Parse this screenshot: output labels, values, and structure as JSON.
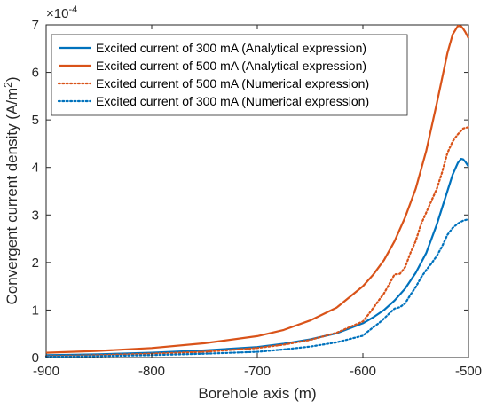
{
  "chart_data": {
    "type": "line",
    "xlabel": "Borehole axis (m)",
    "ylabel_main": "Convergent current density (A/m",
    "ylabel_sup": "2",
    "ylabel_tail": ")",
    "y_multiplier_base": "×10",
    "y_multiplier_exp": "-4",
    "xlim": [
      -900,
      -500
    ],
    "ylim": [
      0,
      7
    ],
    "y_scale_note": "values in units of 1e-4 A/m^2",
    "xticks": [
      -900,
      -800,
      -700,
      -600,
      -500
    ],
    "yticks": [
      0,
      1,
      2,
      3,
      4,
      5,
      6,
      7
    ],
    "grid": false,
    "legend_position": "top-left",
    "series": [
      {
        "name": "Excited current of 300 mA (Analytical expression)",
        "color": "#0072BD",
        "style": "solid",
        "x": [
          -900,
          -850,
          -800,
          -750,
          -700,
          -675,
          -650,
          -625,
          -600,
          -590,
          -580,
          -570,
          -560,
          -550,
          -540,
          -530,
          -520,
          -515,
          -510,
          -507,
          -505,
          -503,
          -500
        ],
        "y": [
          0.05,
          0.07,
          0.1,
          0.15,
          0.22,
          0.29,
          0.38,
          0.51,
          0.72,
          0.85,
          1.0,
          1.2,
          1.45,
          1.78,
          2.2,
          2.8,
          3.5,
          3.85,
          4.1,
          4.18,
          4.17,
          4.12,
          4.02
        ]
      },
      {
        "name": "Excited current of 500 mA (Analytical expression)",
        "color": "#D95319",
        "style": "solid",
        "x": [
          -900,
          -850,
          -800,
          -750,
          -700,
          -675,
          -650,
          -625,
          -600,
          -590,
          -580,
          -570,
          -560,
          -550,
          -540,
          -530,
          -520,
          -515,
          -510,
          -507,
          -505,
          -503,
          -500
        ],
        "y": [
          0.1,
          0.14,
          0.2,
          0.3,
          0.45,
          0.58,
          0.78,
          1.05,
          1.5,
          1.75,
          2.05,
          2.45,
          2.95,
          3.55,
          4.35,
          5.35,
          6.4,
          6.8,
          6.98,
          6.97,
          6.92,
          6.85,
          6.72
        ]
      },
      {
        "name": "Excited current of 500 mA (Numerical expression)",
        "color": "#D95319",
        "style": "dotted",
        "x": [
          -900,
          -850,
          -800,
          -750,
          -700,
          -675,
          -650,
          -625,
          -600,
          -595,
          -590,
          -585,
          -580,
          -575,
          -570,
          -565,
          -560,
          -555,
          -550,
          -545,
          -540,
          -535,
          -530,
          -525,
          -520,
          -515,
          -510,
          -505,
          -500
        ],
        "y": [
          0.03,
          0.05,
          0.08,
          0.12,
          0.2,
          0.27,
          0.37,
          0.52,
          0.76,
          0.9,
          1.05,
          1.2,
          1.35,
          1.55,
          1.75,
          1.76,
          1.9,
          2.2,
          2.45,
          2.8,
          3.05,
          3.3,
          3.55,
          3.9,
          4.3,
          4.55,
          4.7,
          4.82,
          4.85
        ]
      },
      {
        "name": "Excited current of 300 mA (Numerical expression)",
        "color": "#0072BD",
        "style": "dotted",
        "x": [
          -900,
          -850,
          -800,
          -750,
          -700,
          -675,
          -650,
          -625,
          -600,
          -595,
          -590,
          -585,
          -580,
          -575,
          -570,
          -565,
          -560,
          -555,
          -550,
          -545,
          -540,
          -535,
          -530,
          -525,
          -520,
          -515,
          -510,
          -505,
          -500
        ],
        "y": [
          0.02,
          0.03,
          0.05,
          0.08,
          0.12,
          0.17,
          0.23,
          0.32,
          0.46,
          0.55,
          0.64,
          0.72,
          0.82,
          0.93,
          1.03,
          1.06,
          1.14,
          1.32,
          1.48,
          1.68,
          1.84,
          1.98,
          2.14,
          2.34,
          2.58,
          2.73,
          2.82,
          2.88,
          2.91
        ]
      }
    ]
  }
}
